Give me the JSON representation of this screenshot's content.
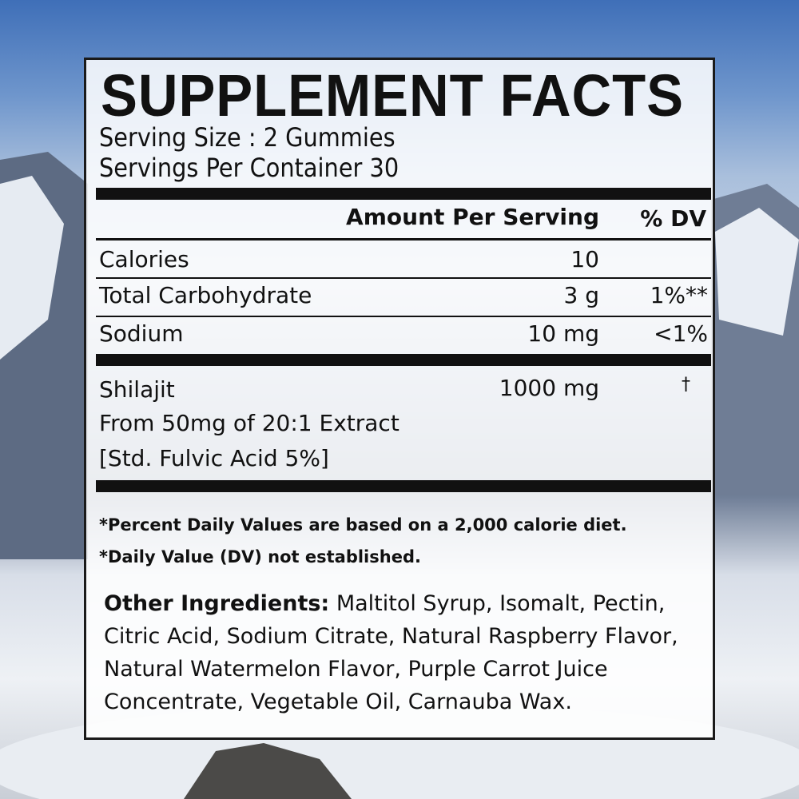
{
  "title": "SUPPLEMENT FACTS",
  "serving_size": "Serving Size : 2 Gummies",
  "servings_per_container": "Servings Per Container 30",
  "header": {
    "amount": "Amount Per Serving",
    "dv": "% DV"
  },
  "rows": [
    {
      "name": "Calories",
      "amount": "10",
      "dv": ""
    },
    {
      "name": "Total Carbohydrate",
      "amount": "3 g",
      "dv": "1%**"
    },
    {
      "name": "Sodium",
      "amount": "10 mg",
      "dv": "<1%"
    }
  ],
  "shilajit": {
    "name": "Shilajit",
    "line2": "From 50mg of 20:1 Extract",
    "line3": "[Std. Fulvic Acid 5%]",
    "amount": "1000 mg",
    "dv": "†"
  },
  "footnotes": [
    "*Percent Daily Values are based on a 2,000 calorie diet.",
    "*Daily Value (DV) not established."
  ],
  "other_ingredients": {
    "label": "Other Ingredients:",
    "text": " Maltitol Syrup, Isomalt, Pectin, Citric Acid, Sodium Citrate, Natural Raspberry Flavor, Natural Watermelon Flavor, Purple Carrot Juice Concentrate, Vegetable Oil, Carnauba Wax."
  }
}
